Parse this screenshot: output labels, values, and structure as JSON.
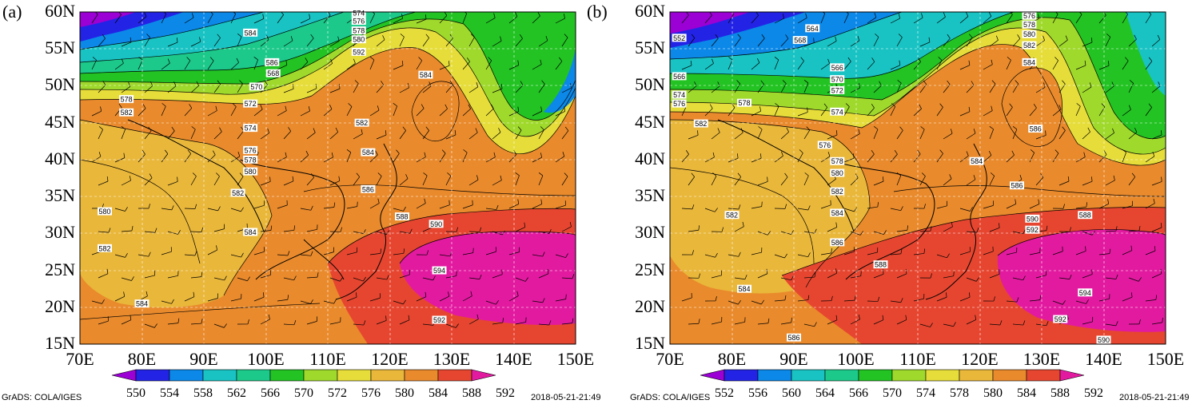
{
  "figure": {
    "axis": {
      "y_labels": [
        "60N",
        "55N",
        "50N",
        "45N",
        "40N",
        "35N",
        "30N",
        "25N",
        "20N",
        "15N"
      ],
      "x_labels": [
        "70E",
        "80E",
        "90E",
        "100E",
        "110E",
        "120E",
        "130E",
        "140E",
        "150E"
      ],
      "lon_range": [
        70,
        150
      ],
      "lat_range": [
        15,
        60
      ]
    },
    "colorbar_colors": [
      "#9b00d4",
      "#2323e6",
      "#0b88e8",
      "#19c3c3",
      "#1cc98a",
      "#22c322",
      "#9fd92c",
      "#e6dd3a",
      "#e9b73a",
      "#e98a2c",
      "#e64630",
      "#e21aa0"
    ],
    "panels": [
      {
        "label": "(a)",
        "contour_labels": [
          {
            "text": "584",
            "lon": 97.5,
            "lat": 57.2
          },
          {
            "text": "586",
            "lon": 101,
            "lat": 53.2
          },
          {
            "text": "568",
            "lon": 101.2,
            "lat": 51.7
          },
          {
            "text": "570",
            "lon": 98.5,
            "lat": 49.9
          },
          {
            "text": "572",
            "lon": 97.5,
            "lat": 47.6
          },
          {
            "text": "574",
            "lon": 97.5,
            "lat": 44.3
          },
          {
            "text": "576",
            "lon": 97.5,
            "lat": 41.3
          },
          {
            "text": "578",
            "lon": 97.5,
            "lat": 40.0
          },
          {
            "text": "580",
            "lon": 97.5,
            "lat": 38.4
          },
          {
            "text": "582",
            "lon": 95.5,
            "lat": 35.5
          },
          {
            "text": "582",
            "lon": 115.5,
            "lat": 45.0
          },
          {
            "text": "584",
            "lon": 125.8,
            "lat": 51.5
          },
          {
            "text": "584",
            "lon": 116.5,
            "lat": 41.0
          },
          {
            "text": "586",
            "lon": 116.5,
            "lat": 36.0
          },
          {
            "text": "584",
            "lon": 97.5,
            "lat": 30.2
          },
          {
            "text": "588",
            "lon": 122,
            "lat": 32.3
          },
          {
            "text": "590",
            "lon": 127.5,
            "lat": 31.3
          },
          {
            "text": "594",
            "lon": 128,
            "lat": 25.0
          },
          {
            "text": "592",
            "lon": 128,
            "lat": 18.3
          },
          {
            "text": "580",
            "lon": 74,
            "lat": 33.0
          },
          {
            "text": "582",
            "lon": 74,
            "lat": 28.0
          },
          {
            "text": "584",
            "lon": 80,
            "lat": 20.5
          },
          {
            "text": "578",
            "lon": 77.5,
            "lat": 48.2
          },
          {
            "text": "582",
            "lon": 77.5,
            "lat": 46.4
          },
          {
            "text": "574",
            "lon": 115,
            "lat": 59.9
          },
          {
            "text": "576",
            "lon": 115,
            "lat": 58.8
          },
          {
            "text": "578",
            "lon": 115,
            "lat": 57.5
          },
          {
            "text": "580",
            "lon": 115,
            "lat": 56.3
          },
          {
            "text": "592",
            "lon": 115,
            "lat": 54.6
          }
        ],
        "colorbar_values": [
          "550",
          "554",
          "558",
          "562",
          "566",
          "570",
          "572",
          "576",
          "580",
          "584",
          "588",
          "592"
        ],
        "credit": "GrADS: COLA/IGES",
        "timestamp": "2018-05-21-21:49"
      },
      {
        "label": "(b)",
        "contour_labels": [
          {
            "text": "552",
            "lon": 71.5,
            "lat": 56.5
          },
          {
            "text": "564",
            "lon": 93,
            "lat": 57.8
          },
          {
            "text": "568",
            "lon": 91,
            "lat": 56.2
          },
          {
            "text": "566",
            "lon": 71.5,
            "lat": 51.3
          },
          {
            "text": "574",
            "lon": 71.5,
            "lat": 48.8
          },
          {
            "text": "576",
            "lon": 71.5,
            "lat": 47.6
          },
          {
            "text": "578",
            "lon": 82,
            "lat": 47.7
          },
          {
            "text": "582",
            "lon": 75,
            "lat": 44.9
          },
          {
            "text": "566",
            "lon": 97,
            "lat": 52.5
          },
          {
            "text": "570",
            "lon": 97,
            "lat": 50.9
          },
          {
            "text": "572",
            "lon": 97,
            "lat": 49.4
          },
          {
            "text": "574",
            "lon": 97,
            "lat": 46.5
          },
          {
            "text": "576",
            "lon": 95,
            "lat": 42.0
          },
          {
            "text": "578",
            "lon": 97,
            "lat": 39.8
          },
          {
            "text": "580",
            "lon": 97,
            "lat": 38.2
          },
          {
            "text": "582",
            "lon": 97,
            "lat": 35.7
          },
          {
            "text": "584",
            "lon": 97,
            "lat": 32.8
          },
          {
            "text": "586",
            "lon": 97,
            "lat": 28.8
          },
          {
            "text": "582",
            "lon": 80,
            "lat": 32.5
          },
          {
            "text": "584",
            "lon": 82,
            "lat": 22.5
          },
          {
            "text": "588",
            "lon": 104,
            "lat": 25.8
          },
          {
            "text": "576",
            "lon": 128,
            "lat": 59.5
          },
          {
            "text": "578",
            "lon": 128,
            "lat": 58.3
          },
          {
            "text": "580",
            "lon": 128,
            "lat": 57.0
          },
          {
            "text": "582",
            "lon": 128,
            "lat": 55.5
          },
          {
            "text": "584",
            "lon": 128,
            "lat": 53.2
          },
          {
            "text": "586",
            "lon": 129,
            "lat": 44.2
          },
          {
            "text": "584",
            "lon": 119.5,
            "lat": 39.8
          },
          {
            "text": "586",
            "lon": 126,
            "lat": 36.5
          },
          {
            "text": "590",
            "lon": 128.5,
            "lat": 32.0
          },
          {
            "text": "592",
            "lon": 128.5,
            "lat": 30.5
          },
          {
            "text": "588",
            "lon": 137,
            "lat": 32.5
          },
          {
            "text": "594",
            "lon": 137,
            "lat": 22.0
          },
          {
            "text": "592",
            "lon": 133,
            "lat": 18.4
          },
          {
            "text": "586",
            "lon": 90,
            "lat": 15.9
          },
          {
            "text": "590",
            "lon": 140,
            "lat": 15.6
          }
        ],
        "colorbar_values": [
          "552",
          "556",
          "560",
          "564",
          "566",
          "570",
          "574",
          "578",
          "580",
          "584",
          "588",
          "592"
        ],
        "credit": "GrADS: COLA/IGES",
        "timestamp": "2018-05-21-21:49"
      }
    ]
  }
}
